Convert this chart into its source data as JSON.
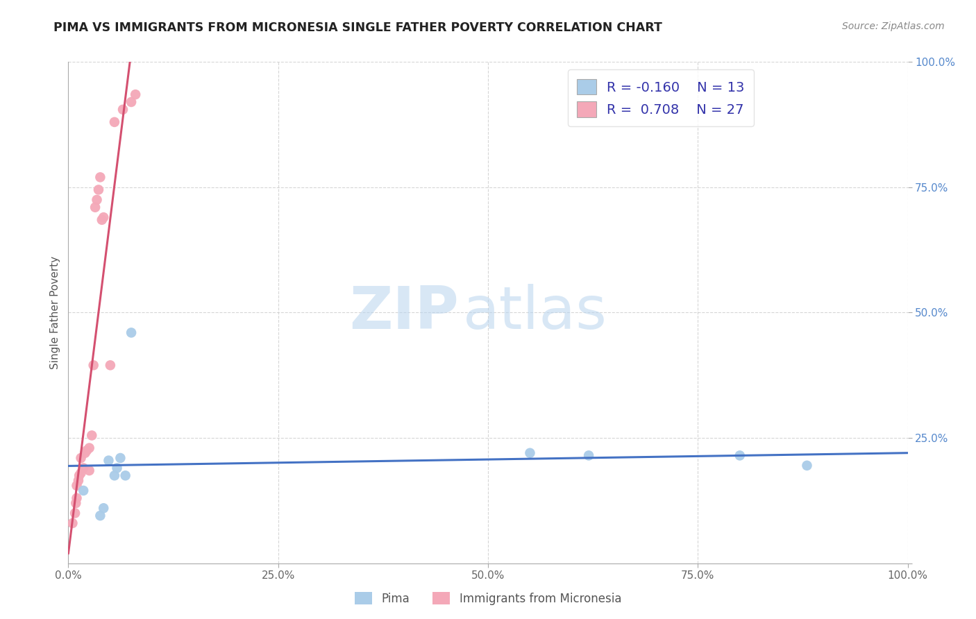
{
  "title": "PIMA VS IMMIGRANTS FROM MICRONESIA SINGLE FATHER POVERTY CORRELATION CHART",
  "source": "Source: ZipAtlas.com",
  "ylabel": "Single Father Poverty",
  "xlim": [
    0.0,
    1.0
  ],
  "ylim": [
    0.0,
    1.0
  ],
  "xticks": [
    0.0,
    0.25,
    0.5,
    0.75,
    1.0
  ],
  "xticklabels": [
    "0.0%",
    "25.0%",
    "50.0%",
    "75.0%",
    "100.0%"
  ],
  "yticks": [
    0.0,
    0.25,
    0.5,
    0.75,
    1.0
  ],
  "yticklabels": [
    "",
    "25.0%",
    "50.0%",
    "75.0%",
    "100.0%"
  ],
  "pima_color": "#aacce8",
  "micronesia_color": "#f4a8b8",
  "pima_line_color": "#4472c4",
  "micronesia_line_color": "#d45070",
  "legend_r_pima": "-0.160",
  "legend_n_pima": "13",
  "legend_r_micro": "0.708",
  "legend_n_micro": "27",
  "pima_label": "Pima",
  "micro_label": "Immigrants from Micronesia",
  "watermark_zip": "ZIP",
  "watermark_atlas": "atlas",
  "pima_x": [
    0.018,
    0.038,
    0.042,
    0.048,
    0.055,
    0.058,
    0.062,
    0.068,
    0.075,
    0.55,
    0.62,
    0.8,
    0.88
  ],
  "pima_y": [
    0.145,
    0.095,
    0.11,
    0.205,
    0.175,
    0.19,
    0.21,
    0.175,
    0.46,
    0.22,
    0.215,
    0.215,
    0.195
  ],
  "micro_x": [
    0.005,
    0.008,
    0.009,
    0.01,
    0.01,
    0.012,
    0.013,
    0.015,
    0.015,
    0.018,
    0.02,
    0.022,
    0.025,
    0.025,
    0.028,
    0.03,
    0.032,
    0.034,
    0.036,
    0.038,
    0.04,
    0.042,
    0.05,
    0.055,
    0.065,
    0.075,
    0.08
  ],
  "micro_y": [
    0.08,
    0.1,
    0.12,
    0.13,
    0.155,
    0.165,
    0.175,
    0.18,
    0.21,
    0.19,
    0.22,
    0.225,
    0.23,
    0.185,
    0.255,
    0.395,
    0.71,
    0.725,
    0.745,
    0.77,
    0.685,
    0.69,
    0.395,
    0.88,
    0.905,
    0.92,
    0.935
  ],
  "background_color": "#ffffff",
  "grid_color": "#cccccc"
}
